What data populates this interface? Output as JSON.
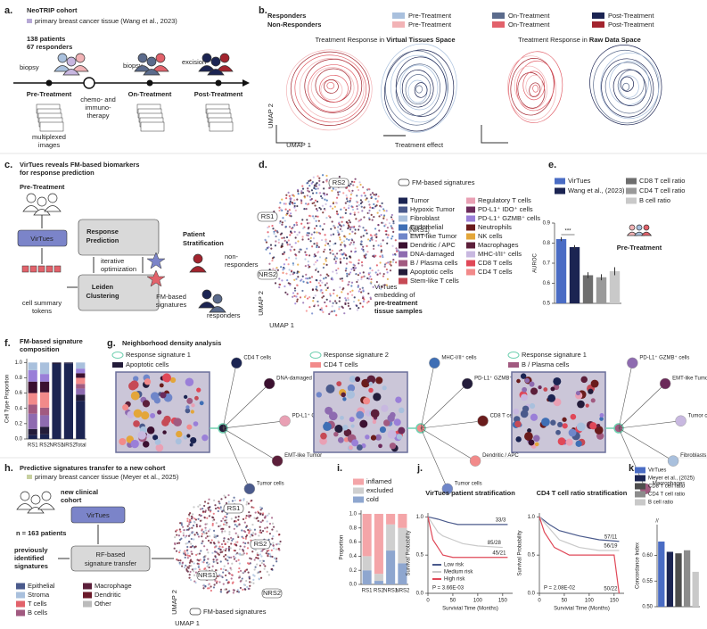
{
  "panels": {
    "a": {
      "label": "a.",
      "title": "NeoTRIP cohort",
      "subtitle": "primary breast cancer tissue (Wang et al., 2023)",
      "patients": "138 patients",
      "responders": "67 responders",
      "biopsy1": "biopsy",
      "biopsy2": "biopsy",
      "excision": "excision",
      "pre": "Pre-Treatment",
      "on": "On-Treatment",
      "post": "Post-Treatment",
      "therapy": [
        "chemo- and",
        "immuno-",
        "therapy"
      ],
      "images": [
        "multiplexed",
        "images"
      ]
    },
    "b": {
      "label": "b.",
      "responders": "Responders",
      "non_responders": "Non-Responders",
      "phases": [
        "Pre-Treatment",
        "On-Treatment",
        "Post-Treatment"
      ],
      "responder_colors": [
        "#a9c0dd",
        "#5b6b8c",
        "#1b2452"
      ],
      "non_responder_colors": [
        "#f2b3b6",
        "#e2626b",
        "#a3242e"
      ],
      "title1": [
        "Treatment Response in ",
        "Virtual Tissues Space"
      ],
      "title2": [
        "Treatment Response in ",
        "Raw Data Space"
      ],
      "umap2": "UMAP 2",
      "umap1": "UMAP 1",
      "effect": "Treatment effect"
    },
    "c": {
      "label": "c.",
      "title": [
        "VirTues reveals FM-based biomarkers",
        "for response prediction"
      ],
      "pre": "Pre-Treatment",
      "virtues": "VirTues",
      "tokens": [
        "cell summary",
        "tokens"
      ],
      "prediction": [
        "Response",
        "Prediction"
      ],
      "clustering": [
        "Leiden",
        "Clustering"
      ],
      "iterative": [
        "iterative",
        "optimization"
      ],
      "signatures": [
        "FM-based",
        "signatures"
      ],
      "stratification": [
        "Patient",
        "Stratification"
      ],
      "non_responders": [
        "non-",
        "responders"
      ],
      "responders": "responders"
    },
    "d": {
      "label": "d.",
      "legend_title": "FM-based signatures",
      "signatures": [
        "RS2",
        "RS1",
        "NRS1",
        "NRS2"
      ],
      "umap2": "UMAP 2",
      "umap1": "UMAP 1",
      "caption": [
        "VirTues",
        "embedding of",
        "pre-treatment",
        "tissue samples"
      ],
      "cell_types": [
        {
          "name": "Tumor",
          "color": "#1b2452"
        },
        {
          "name": "Hypoxic Tumor",
          "color": "#4a5a8c"
        },
        {
          "name": "Fibroblast",
          "color": "#a9c0dd"
        },
        {
          "name": "Endothelial",
          "color": "#3f6fb5"
        },
        {
          "name": "EMT-like Tumor",
          "color": "#6f86c9"
        },
        {
          "name": "Dendritic / APC",
          "color": "#3b1030"
        },
        {
          "name": "DNA-damaged",
          "color": "#8e6bb0"
        },
        {
          "name": "B / Plasma cells",
          "color": "#a15a80"
        },
        {
          "name": "Apoptotic cells",
          "color": "#231c3a"
        },
        {
          "name": "Stem-like T cells",
          "color": "#c64a55"
        },
        {
          "name": "Regulatory T cells",
          "color": "#e9a0b4"
        },
        {
          "name": "PD-L1⁺ IDO⁺ cells",
          "color": "#6b2a5a"
        },
        {
          "name": "PD-L1⁺ GZMB⁺ cells",
          "color": "#9a7fd8"
        },
        {
          "name": "Neutrophils",
          "color": "#6a1c1c"
        },
        {
          "name": "NK cells",
          "color": "#e3a63a"
        },
        {
          "name": "Macrophages",
          "color": "#5c1f3a"
        },
        {
          "name": "MHC-I/II⁺ cells",
          "color": "#c8b8e0"
        },
        {
          "name": "CD8 T cells",
          "color": "#e04858"
        },
        {
          "name": "CD4 T cells",
          "color": "#f28a8a"
        }
      ]
    },
    "e": {
      "label": "e."
    },
    "f": {
      "label": "f.",
      "title": [
        "FM-based signature",
        "composition"
      ]
    },
    "g": {
      "label": "g.",
      "title": "Neighborhood density analysis",
      "subpanels": [
        {
          "signature": "Response signature 1",
          "cell_type": "Apoptotic cells",
          "color": "#231c3a",
          "nodes": [
            "CD4 T cells",
            "DNA-damaged",
            "PD-L1⁺ GZMB⁺ cells",
            "EMT-like Tumor",
            "Tumor cells"
          ]
        },
        {
          "signature": "Response signature 2",
          "cell_type": "CD4 T cells",
          "color": "#f28a8a",
          "nodes": [
            "MHC-I/II⁺ cells",
            "PD-L1⁺ GZMB⁺ cells",
            "CD8 T cells",
            "Dendritic / APC",
            "Tumor cells"
          ]
        },
        {
          "signature": "Response signature 1",
          "cell_type": "B / Plasma cells",
          "color": "#a15a80",
          "nodes": [
            "PD-L1⁺ GZMB⁺ cells",
            "EMT-like Tumor",
            "Tumor cells",
            "Fibroblasts",
            "Macrophages"
          ]
        }
      ]
    },
    "h": {
      "label": "h.",
      "title": "Predictive signatures transfer to a new cohort",
      "subtitle": "primary breast cancer tissue (Meyer et al., 2025)",
      "cohort": [
        "new clinical",
        "cohort"
      ],
      "virtues": "VirTues",
      "patients": "n = 163 patients",
      "previous": [
        "previously",
        "identified",
        "signatures"
      ],
      "rf": [
        "RF-based",
        "signature transfer"
      ],
      "legend": [
        {
          "name": "Epithelial",
          "color": "#4a5a8c"
        },
        {
          "name": "Stroma",
          "color": "#a9c0dd"
        },
        {
          "name": "T cells",
          "color": "#e2626b"
        },
        {
          "name": "B cells",
          "color": "#a15a80"
        },
        {
          "name": "Macrophage",
          "color": "#5c1f3a"
        },
        {
          "name": "Dendritic",
          "color": "#6b1a2a"
        },
        {
          "name": "Other",
          "color": "#bbbbbb"
        }
      ],
      "signatures": [
        "RS1",
        "RS2",
        "NRS1",
        "NRS2"
      ],
      "legend_title": "FM-based signatures",
      "umap2": "UMAP 2",
      "umap1": "UMAP 1"
    },
    "i": {
      "label": "i."
    },
    "j": {
      "label": "j."
    },
    "k": {
      "label": "k."
    }
  },
  "chart_data": [
    {
      "type": "bar",
      "ylabel": "AUROC",
      "categories": [
        "VirTues",
        "Wang et al., (2023)",
        "CD8 T cell ratio",
        "CD4 T cell ratio",
        "B cell ratio"
      ],
      "values": [
        0.82,
        0.78,
        0.64,
        0.63,
        0.66
      ],
      "errors": [
        0.01,
        0.01,
        0.015,
        0.015,
        0.02
      ],
      "colors": [
        "#4a6cc4",
        "#1b2452",
        "#6e6e6e",
        "#9a9a9a",
        "#c9c9c9"
      ],
      "ylim": [
        0.5,
        0.9
      ],
      "yticks": [
        0.5,
        0.6,
        0.7,
        0.8,
        0.9
      ],
      "annotations": [
        "***",
        "Pre-Treatment"
      ]
    },
    {
      "type": "stacked_bar",
      "ylabel": "Cell Type Proportion",
      "categories": [
        "RS1",
        "RS2",
        "NRS1",
        "NRS2",
        "Total"
      ],
      "ylim": [
        0,
        1.05
      ],
      "yticks": [
        {
          "value": 0,
          "label": "0.0"
        },
        0.2,
        0.4,
        0.6,
        0.8,
        {
          "value": 1,
          "label": "1.0"
        }
      ],
      "series": [
        {
          "color": "#1b2452",
          "values": [
            0.05,
            0.06,
            0.98,
            0.99,
            0.5
          ]
        },
        {
          "color": "#231c3a",
          "values": [
            0.08,
            0.1,
            0.02,
            0.01,
            0.08
          ]
        },
        {
          "color": "#8e6bb0",
          "values": [
            0.2,
            0.15,
            0,
            0,
            0.08
          ]
        },
        {
          "color": "#a15a80",
          "values": [
            0.12,
            0.1,
            0,
            0,
            0.06
          ]
        },
        {
          "color": "#f28a8a",
          "values": [
            0.15,
            0.2,
            0,
            0,
            0.08
          ]
        },
        {
          "color": "#3b1030",
          "values": [
            0.15,
            0.14,
            0,
            0,
            0.06
          ]
        },
        {
          "color": "#9a7fd8",
          "values": [
            0.15,
            0.1,
            0,
            0,
            0.06
          ]
        },
        {
          "color": "#a9c0dd",
          "values": [
            0.1,
            0.15,
            0,
            0,
            0.08
          ]
        }
      ]
    },
    {
      "type": "stacked_bar",
      "ylabel": "Proportion",
      "categories": [
        "RS1",
        "RS2",
        "NRS1",
        "NRS2"
      ],
      "ylim": [
        0,
        1.05
      ],
      "yticks": [
        {
          "value": 0,
          "label": "0.0"
        },
        0.2,
        0.4,
        0.6,
        0.8,
        {
          "value": 1,
          "label": "1.0"
        }
      ],
      "series": [
        {
          "name": "cold",
          "color": "#8ea6cf",
          "values": [
            0.2,
            0.05,
            0.48,
            0.3
          ]
        },
        {
          "name": "excluded",
          "color": "#cfcfcf",
          "values": [
            0.2,
            0.1,
            0.37,
            0.5
          ]
        },
        {
          "name": "inflamed",
          "color": "#f4a5a8",
          "values": [
            0.6,
            0.85,
            0.15,
            0.2
          ]
        }
      ]
    },
    {
      "type": "line",
      "title": "VirTues patient stratification",
      "xlabel": "Survivial Time (Months)",
      "ylabel": "Survival Probability",
      "xlim": [
        0,
        170
      ],
      "ylim": [
        0,
        1.05
      ],
      "xticks": [
        0,
        50,
        100,
        150
      ],
      "yticks": [
        {
          "value": 0,
          "label": "0.0"
        },
        0.5,
        {
          "value": 1,
          "label": "1.0"
        }
      ],
      "p_value": "P = 3.66E-03",
      "series": [
        {
          "name": "Low risk",
          "color": "#4a5a8c",
          "x": [
            0,
            20,
            40,
            60,
            100,
            160
          ],
          "values": [
            1,
            0.97,
            0.93,
            0.9,
            0.9,
            0.9
          ],
          "end_label": "33/3"
        },
        {
          "name": "Medium risk",
          "color": "#c9c9c9",
          "x": [
            0,
            10,
            20,
            30,
            50,
            70,
            100,
            150
          ],
          "values": [
            1,
            0.9,
            0.8,
            0.75,
            0.7,
            0.65,
            0.62,
            0.6
          ],
          "end_label": "85/28"
        },
        {
          "name": "High risk",
          "color": "#e04858",
          "x": [
            0,
            5,
            10,
            20,
            30,
            50,
            160
          ],
          "values": [
            1,
            0.85,
            0.7,
            0.6,
            0.5,
            0.47,
            0.47
          ],
          "end_label": "45/21"
        }
      ]
    },
    {
      "type": "line",
      "title": "CD4 T cell ratio stratification",
      "xlabel": "Survivial Time (Months)",
      "ylabel": "Survival Probability",
      "xlim": [
        0,
        170
      ],
      "ylim": [
        0,
        1.05
      ],
      "xticks": [
        0,
        50,
        100,
        150
      ],
      "yticks": [
        {
          "value": 0,
          "label": "0.0"
        },
        0.5,
        {
          "value": 1,
          "label": "1.0"
        }
      ],
      "p_value": "P = 2.08E-02",
      "series": [
        {
          "color": "#4a5a8c",
          "x": [
            0,
            20,
            40,
            80,
            120,
            160
          ],
          "values": [
            1,
            0.9,
            0.82,
            0.75,
            0.7,
            0.68
          ],
          "end_label": "57/11"
        },
        {
          "color": "#c9c9c9",
          "x": [
            0,
            20,
            40,
            80,
            120,
            160
          ],
          "values": [
            1,
            0.85,
            0.7,
            0.6,
            0.56,
            0.56
          ],
          "end_label": "56/19"
        },
        {
          "color": "#e04858",
          "x": [
            0,
            10,
            30,
            60,
            150,
            160
          ],
          "values": [
            1,
            0.8,
            0.6,
            0.5,
            0.5,
            0
          ],
          "end_label": "50/22"
        }
      ]
    },
    {
      "type": "bar",
      "ylabel": "Concordance Index",
      "categories": [
        "VirTues",
        "Meyer et al., (2025)",
        "CD8 T cell ratio",
        "CD4 T cell ratio",
        "B cell ratio"
      ],
      "values": [
        0.627,
        0.607,
        0.604,
        0.61,
        0.568
      ],
      "colors": [
        "#4a6cc4",
        "#1b2452",
        "#4d4d4d",
        "#8c8c8c",
        "#c9c9c9"
      ],
      "ylim": [
        0.5,
        0.66
      ],
      "yticks": [
        {
          "value": 0.5,
          "label": "0.50"
        },
        {
          "value": 0.55,
          "label": "0.55"
        },
        {
          "value": 0.6,
          "label": "0.60"
        }
      ]
    }
  ]
}
